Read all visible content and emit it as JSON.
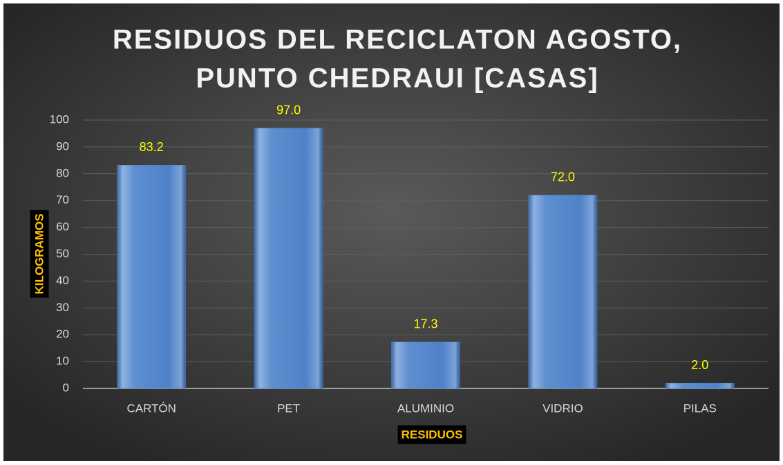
{
  "chart_data": {
    "type": "bar",
    "title": [
      "RESIDUOS DEL RECICLATON AGOSTO,",
      "PUNTO CHEDRAUI [CASAS]"
    ],
    "x_label": "RESIDUOS",
    "y_label": "KILOGRAMOS",
    "categories": [
      "CARTÓN",
      "PET",
      "ALUMINIO",
      "VIDRIO",
      "PILAS"
    ],
    "values": [
      83.2,
      97,
      17.3,
      72,
      2
    ],
    "value_labels": [
      "83.2",
      "97.0",
      "17.3",
      "72.0",
      "2.0"
    ],
    "color": "#4f81bd",
    "ylim": [
      0,
      100
    ],
    "yticks": [
      0,
      10,
      20,
      30,
      40,
      50,
      60,
      70,
      80,
      90,
      100
    ],
    "grid": true
  }
}
